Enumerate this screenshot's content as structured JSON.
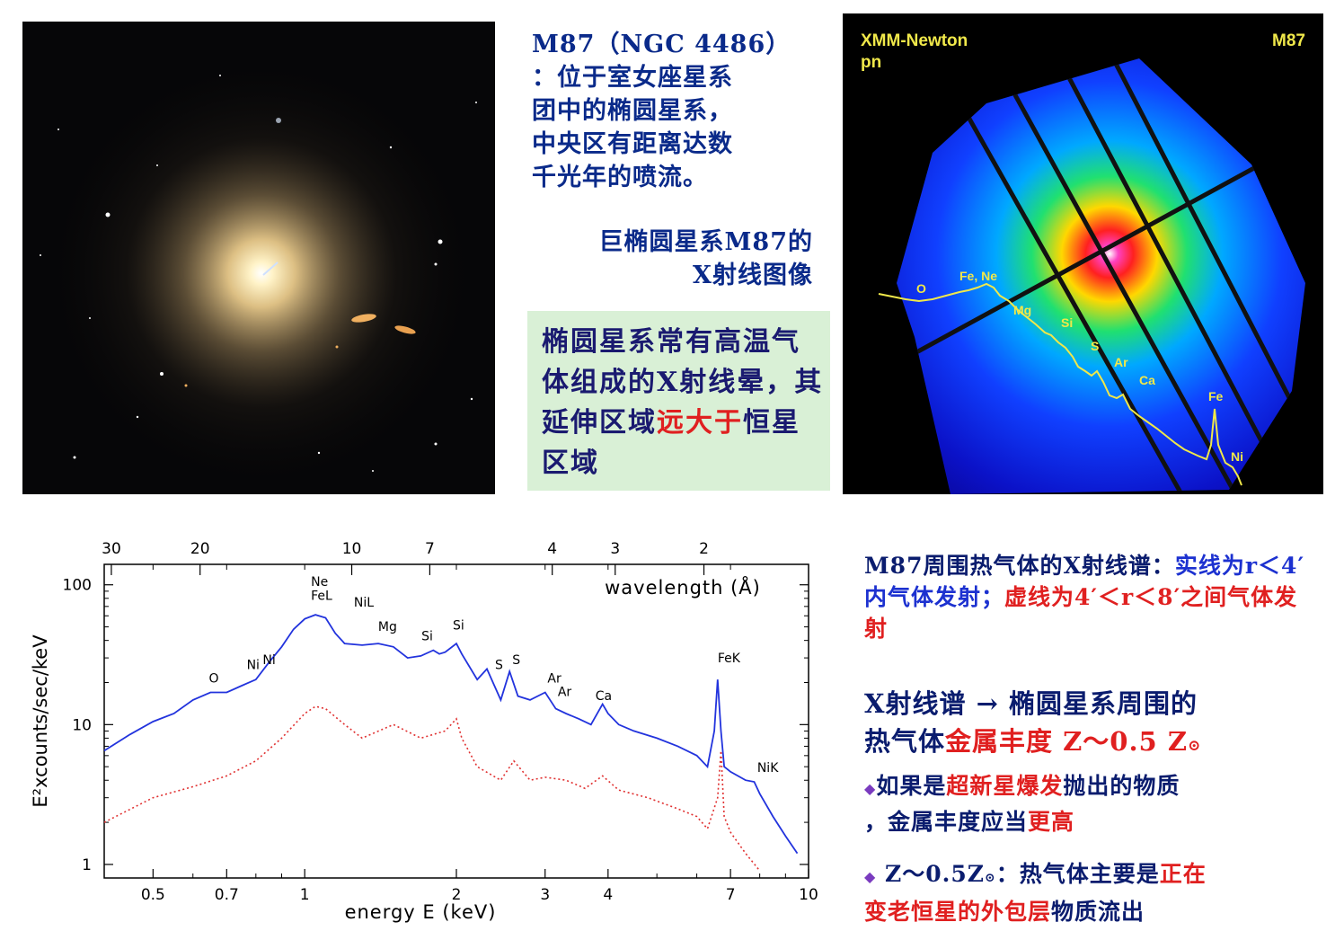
{
  "caption_top": {
    "line1": "M87（NGC 4486）",
    "line2": "：位于室女座星系",
    "line3": "团中的椭圆星系，",
    "line4": "中央区有距离达数",
    "line5": "千光年的喷流。"
  },
  "caption_xray": {
    "line1": "巨椭圆星系M87的",
    "line2": "X射线图像"
  },
  "green_box": {
    "text_a": "椭圆星系常有高温气体组成的X射线晕，其延伸区域",
    "text_red": "远大于",
    "text_b": "恒星区域"
  },
  "xray_image": {
    "top_left": "XMM-Newton",
    "top_left_sub": "pn",
    "top_right": "M87",
    "line_labels": [
      "O",
      "Fe, Ne",
      "Mg",
      "Si",
      "S",
      "Ar",
      "Ca",
      "Fe",
      "Ni"
    ]
  },
  "spectrum_caption": {
    "prefix": "M87周围热气体的X射线谱：",
    "blue_part": "实线为r＜4′内气体发射；",
    "red_part": "虚线为4′＜r＜8′之间气体发射"
  },
  "conclusion": {
    "line1": "X射线谱 → 椭圆星系周围的",
    "line2_a": "热气体",
    "line2_red": "金属丰度 Z～0.5 Z",
    "sun_symbol": "⊙",
    "bullet1_a": "如果是",
    "bullet1_red": "超新星爆发",
    "bullet1_b": "抛出的物质",
    "bullet1_c": "，金属丰度应当",
    "bullet1_red2": "更高",
    "bullet2_a": "Z～0.5Z",
    "bullet2_b": "：热气体主要是",
    "bullet2_red": "正在",
    "bullet2_red2": "变老恒星的外包层",
    "bullet2_c": "物质流出"
  },
  "chart_data": {
    "type": "line",
    "xlabel": "energy E (keV)",
    "ylabel": "E²xcounts/sec/keV",
    "top_axis_label": "wavelength (Å)",
    "xscale": "log",
    "yscale": "log",
    "xlim": [
      0.4,
      10
    ],
    "ylim": [
      0.8,
      140
    ],
    "x_ticks": [
      "0.5",
      "0.7",
      "1",
      "2",
      "3",
      "4",
      "7",
      "10"
    ],
    "x_tick_values": [
      0.5,
      0.7,
      1,
      2,
      3,
      4,
      7,
      10
    ],
    "y_ticks": [
      "1",
      "10",
      "100"
    ],
    "y_tick_values": [
      1,
      10,
      100
    ],
    "top_ticks": [
      "30",
      "20",
      "10",
      "7",
      "4",
      "3",
      "2"
    ],
    "top_tick_wavelengths": [
      30,
      20,
      10,
      7,
      4,
      3,
      2
    ],
    "series": [
      {
        "style": "solid",
        "color": "#2233dd",
        "x": [
          0.4,
          0.45,
          0.5,
          0.55,
          0.6,
          0.65,
          0.7,
          0.75,
          0.8,
          0.85,
          0.9,
          0.95,
          1.0,
          1.05,
          1.1,
          1.15,
          1.2,
          1.3,
          1.4,
          1.5,
          1.6,
          1.7,
          1.8,
          1.85,
          1.9,
          2.0,
          2.05,
          2.2,
          2.3,
          2.45,
          2.55,
          2.65,
          2.8,
          3.0,
          3.15,
          3.3,
          3.5,
          3.7,
          3.9,
          4.0,
          4.2,
          4.5,
          5.0,
          5.5,
          6.0,
          6.3,
          6.5,
          6.6,
          6.7,
          6.8,
          6.9,
          7.0,
          7.5,
          7.8,
          8.0,
          8.5,
          9.0,
          9.5
        ],
        "y": [
          6.5,
          8.5,
          10.5,
          12,
          15,
          17,
          17,
          19,
          21,
          28,
          36,
          48,
          57,
          61,
          58,
          45,
          38,
          37,
          38,
          36,
          30,
          31,
          34,
          32,
          33,
          38,
          32,
          21,
          25,
          15,
          24,
          16,
          15,
          17,
          13,
          12,
          11,
          10,
          14,
          12,
          10,
          9,
          8,
          7,
          6,
          5,
          9,
          21,
          9,
          5,
          4.8,
          4.6,
          4,
          3.9,
          3.2,
          2.2,
          1.6,
          1.2
        ]
      },
      {
        "style": "dotted",
        "color": "#e03030",
        "x": [
          0.4,
          0.5,
          0.6,
          0.7,
          0.8,
          0.9,
          1.0,
          1.05,
          1.1,
          1.2,
          1.3,
          1.5,
          1.7,
          1.9,
          2.0,
          2.05,
          2.2,
          2.45,
          2.6,
          2.8,
          3.0,
          3.3,
          3.6,
          3.9,
          4.2,
          4.8,
          5.5,
          6.0,
          6.3,
          6.6,
          6.7,
          6.8,
          7.0,
          7.5,
          8.0
        ],
        "y": [
          2,
          3,
          3.6,
          4.3,
          5.5,
          8,
          12,
          13.5,
          13,
          10,
          8,
          10,
          8,
          9,
          11,
          8,
          5,
          4,
          5.5,
          4,
          4.2,
          4,
          3.5,
          4.3,
          3.4,
          3,
          2.5,
          2.2,
          1.8,
          3,
          6.5,
          2.2,
          1.7,
          1.2,
          0.9
        ]
      }
    ],
    "annotations": [
      {
        "text": "O",
        "x": 0.66,
        "y": 20
      },
      {
        "text": "Ni",
        "x": 0.79,
        "y": 25
      },
      {
        "text": "Ni",
        "x": 0.85,
        "y": 27
      },
      {
        "text": "Ne",
        "x": 1.07,
        "y": 98
      },
      {
        "text": "FeL",
        "x": 1.08,
        "y": 78
      },
      {
        "text": "NiL",
        "x": 1.31,
        "y": 70
      },
      {
        "text": "Mg",
        "x": 1.46,
        "y": 47
      },
      {
        "text": "Si",
        "x": 1.75,
        "y": 40
      },
      {
        "text": "Si",
        "x": 2.02,
        "y": 48
      },
      {
        "text": "S",
        "x": 2.43,
        "y": 25
      },
      {
        "text": "S",
        "x": 2.63,
        "y": 27
      },
      {
        "text": "Ar",
        "x": 3.13,
        "y": 20
      },
      {
        "text": "Ar",
        "x": 3.28,
        "y": 16
      },
      {
        "text": "Ca",
        "x": 3.92,
        "y": 15
      },
      {
        "text": "FeK",
        "x": 6.95,
        "y": 28
      },
      {
        "text": "NiK",
        "x": 8.3,
        "y": 4.6
      }
    ]
  },
  "colors": {
    "caption_navy": "#0a2a8a",
    "red_text": "#e02020",
    "green_box": "#d9f0d6",
    "blue_text": "#1c31d0"
  }
}
